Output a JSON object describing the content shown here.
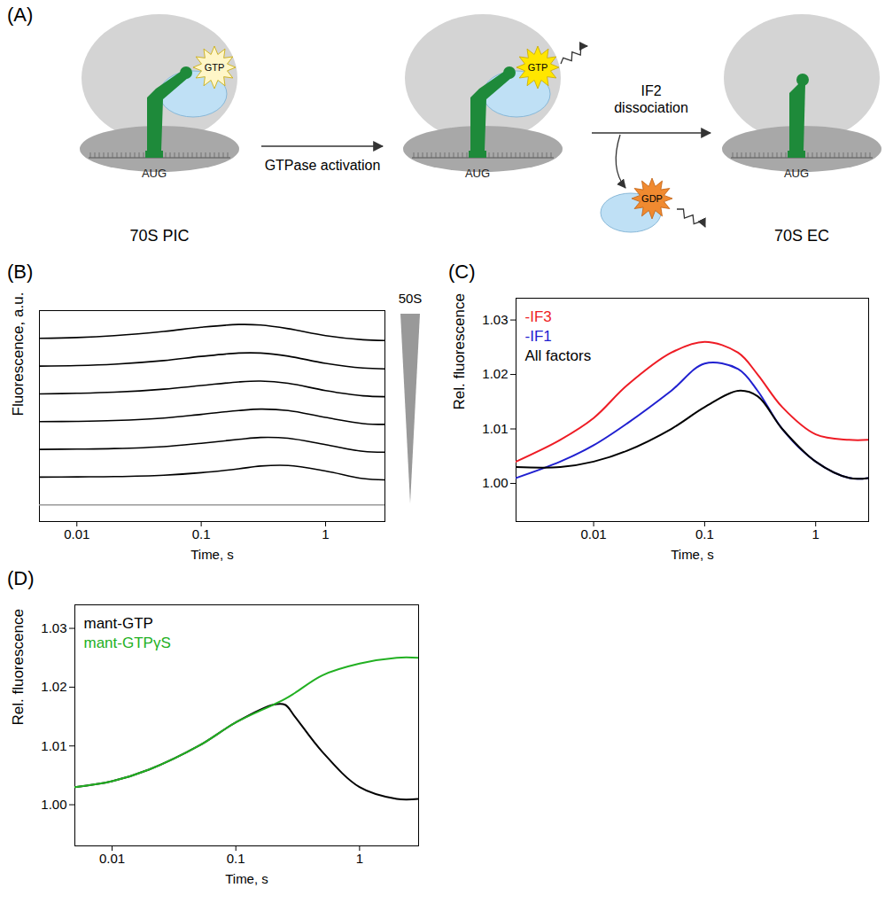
{
  "diagram": {
    "panel": "(A)",
    "states": [
      {
        "label": "70S PIC",
        "codon": "AUG",
        "nucleotide": "GTP"
      },
      {
        "codon": "AUG",
        "nucleotide": "GTP"
      },
      {
        "label": "70S EC",
        "codon": "AUG"
      }
    ],
    "steps": [
      {
        "label": "GTPase activation"
      },
      {
        "label": "IF2 dissociation",
        "product": "GDP"
      }
    ]
  },
  "chart_data": [
    {
      "panel": "(B)",
      "type": "line",
      "x_label": "Time, s",
      "y_label": "Fluorescence, a.u.",
      "wedge_label": "50S",
      "log": "x",
      "tick_labels": "x",
      "xlim": [
        0.005,
        3
      ],
      "xticks": [
        0.01,
        0.1,
        1
      ],
      "ylim": [
        -0.6,
        7.0
      ],
      "x": [
        0.005,
        0.01,
        0.02,
        0.05,
        0.1,
        0.2,
        0.3,
        0.5,
        1,
        2,
        3
      ],
      "series": [
        {
          "color": "#000000",
          "values": [
            6.0,
            6.03,
            6.1,
            6.25,
            6.4,
            6.5,
            6.48,
            6.35,
            6.1,
            5.95,
            5.92
          ]
        },
        {
          "color": "#000000",
          "values": [
            5.0,
            5.02,
            5.07,
            5.2,
            5.35,
            5.47,
            5.47,
            5.36,
            5.1,
            4.93,
            4.9
          ]
        },
        {
          "color": "#000000",
          "values": [
            4.0,
            4.02,
            4.06,
            4.17,
            4.3,
            4.43,
            4.46,
            4.38,
            4.12,
            3.93,
            3.9
          ]
        },
        {
          "color": "#000000",
          "values": [
            3.0,
            3.01,
            3.04,
            3.13,
            3.26,
            3.4,
            3.45,
            3.4,
            3.15,
            2.93,
            2.9
          ]
        },
        {
          "color": "#000000",
          "values": [
            2.0,
            2.01,
            2.03,
            2.1,
            2.22,
            2.36,
            2.43,
            2.4,
            2.17,
            1.93,
            1.9
          ]
        },
        {
          "color": "#000000",
          "values": [
            1.0,
            1.01,
            1.02,
            1.07,
            1.16,
            1.3,
            1.4,
            1.42,
            1.22,
            0.95,
            0.9
          ]
        },
        {
          "color": "#999999",
          "values": [
            0,
            0,
            0,
            0,
            0,
            0,
            0,
            0,
            0,
            0,
            0
          ]
        }
      ]
    },
    {
      "panel": "(C)",
      "type": "line",
      "x_label": "Time, s",
      "y_label": "Rel. fluorescence",
      "log": "x",
      "legend": "top-left",
      "xlim": [
        0.002,
        3
      ],
      "xticks": [
        0.01,
        0.1,
        1
      ],
      "ylim": [
        0.993,
        1.034
      ],
      "yticks": [
        {
          "value": 1,
          "label": "1.00"
        },
        {
          "value": 1.01,
          "label": "1.01"
        },
        {
          "value": 1.02,
          "label": "1.02"
        },
        {
          "value": 1.03,
          "label": "1.03"
        }
      ],
      "x": [
        0.002,
        0.005,
        0.01,
        0.02,
        0.05,
        0.1,
        0.2,
        0.3,
        0.5,
        1,
        2,
        3
      ],
      "series": [
        {
          "name": "-IF3",
          "color": "#ee1c25",
          "values": [
            1.004,
            1.008,
            1.012,
            1.018,
            1.024,
            1.026,
            1.024,
            1.02,
            1.014,
            1.009,
            1.008,
            1.008
          ]
        },
        {
          "name": "-IF1",
          "color": "#2020d0",
          "values": [
            1.001,
            1.004,
            1.007,
            1.011,
            1.017,
            1.022,
            1.021,
            1.017,
            1.01,
            1.004,
            1.001,
            1.001
          ]
        },
        {
          "name": "All factors",
          "color": "#000000",
          "values": [
            1.003,
            1.003,
            1.004,
            1.006,
            1.01,
            1.014,
            1.017,
            1.016,
            1.01,
            1.004,
            1.001,
            1.001
          ]
        }
      ]
    },
    {
      "panel": "(D)",
      "type": "line",
      "x_label": "Time, s",
      "y_label": "Rel. fluorescence",
      "log": "x",
      "legend": "top-left",
      "xlim": [
        0.005,
        3
      ],
      "xticks": [
        0.01,
        0.1,
        1
      ],
      "ylim": [
        0.993,
        1.034
      ],
      "yticks": [
        {
          "value": 1,
          "label": "1.00"
        },
        {
          "value": 1.01,
          "label": "1.01"
        },
        {
          "value": 1.02,
          "label": "1.02"
        },
        {
          "value": 1.03,
          "label": "1.03"
        }
      ],
      "x": [
        0.005,
        0.01,
        0.02,
        0.05,
        0.1,
        0.2,
        0.25,
        0.3,
        0.5,
        1,
        2,
        3
      ],
      "series": [
        {
          "name": "mant-GTP",
          "color": "#000000",
          "values": [
            1.003,
            1.004,
            1.006,
            1.01,
            1.014,
            1.017,
            1.017,
            1.015,
            1.009,
            1.003,
            1.001,
            1.001
          ]
        },
        {
          "name": "mant-GTPγS",
          "color": "#22b022",
          "values": [
            1.003,
            1.004,
            1.006,
            1.01,
            1.014,
            1.017,
            1.018,
            1.019,
            1.022,
            1.024,
            1.025,
            1.025
          ]
        }
      ]
    }
  ]
}
